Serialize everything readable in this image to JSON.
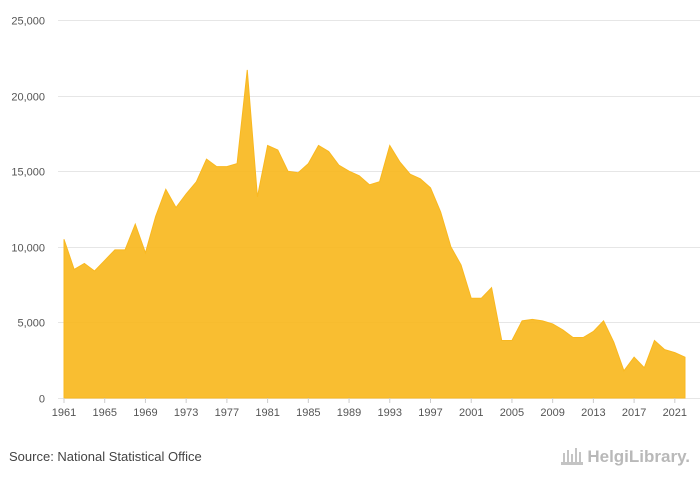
{
  "chart_data": {
    "type": "area",
    "series_color": "#F9B820",
    "ylim": [
      0,
      25000
    ],
    "xlim": [
      1961,
      2022
    ],
    "y_ticks": [
      0,
      5000,
      10000,
      15000,
      20000,
      25000
    ],
    "y_tick_labels": [
      "0",
      "5,000",
      "10,000",
      "15,000",
      "20,000",
      "25,000"
    ],
    "x_ticks": [
      1961,
      1965,
      1969,
      1973,
      1977,
      1981,
      1985,
      1989,
      1993,
      1997,
      2001,
      2005,
      2009,
      2013,
      2017,
      2021
    ],
    "x_tick_labels": [
      "1961",
      "1965",
      "1969",
      "1973",
      "1977",
      "1981",
      "1985",
      "1989",
      "1993",
      "1997",
      "2001",
      "2005",
      "2009",
      "2013",
      "2017",
      "2021"
    ],
    "grid": true,
    "x": [
      1961,
      1962,
      1963,
      1964,
      1965,
      1966,
      1967,
      1968,
      1969,
      1970,
      1971,
      1972,
      1973,
      1974,
      1975,
      1976,
      1977,
      1978,
      1979,
      1980,
      1981,
      1982,
      1983,
      1984,
      1985,
      1986,
      1987,
      1988,
      1989,
      1990,
      1991,
      1992,
      1993,
      1994,
      1995,
      1996,
      1997,
      1998,
      1999,
      2000,
      2001,
      2002,
      2003,
      2004,
      2005,
      2006,
      2007,
      2008,
      2009,
      2010,
      2011,
      2012,
      2013,
      2014,
      2015,
      2016,
      2017,
      2018,
      2019,
      2020,
      2021,
      2022
    ],
    "values": [
      10500,
      8500,
      8900,
      8400,
      9100,
      9800,
      9800,
      11500,
      9600,
      12000,
      13800,
      12600,
      13500,
      14300,
      15800,
      15300,
      15300,
      15500,
      21700,
      13300,
      16700,
      16400,
      15000,
      14900,
      15500,
      16700,
      16300,
      15400,
      15000,
      14700,
      14100,
      14300,
      16700,
      15600,
      14800,
      14500,
      13900,
      12300,
      10000,
      8800,
      6600,
      6600,
      7300,
      3800,
      3800,
      5100,
      5200,
      5100,
      4900,
      4500,
      4000,
      4000,
      4400,
      5100,
      3700,
      1800,
      2700,
      2000,
      3800,
      3200,
      3000,
      2700
    ]
  },
  "footer": {
    "source": "Source: National Statistical Office",
    "logo_text": "HelgiLibrary."
  }
}
